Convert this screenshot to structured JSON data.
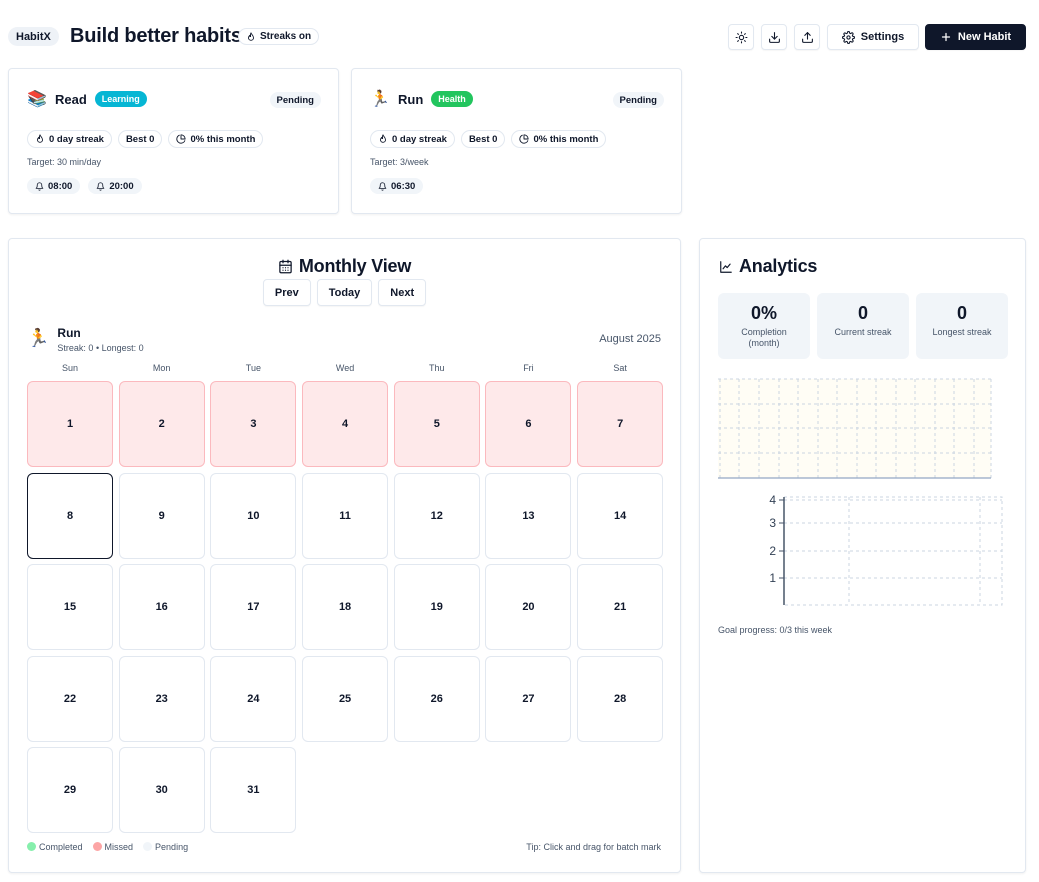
{
  "header": {
    "brand": "HabitX",
    "title": "Build better habits",
    "streaks_badge": "Streaks on",
    "icon_buttons": [
      "sun-icon",
      "download-icon",
      "upload-icon"
    ],
    "settings_label": "Settings",
    "new_habit_label": "New Habit"
  },
  "habits": [
    {
      "emoji": "📚",
      "name": "Read",
      "tag": "Learning",
      "tag_color": "#06b6d4",
      "status": "Pending",
      "streak": "0 day streak",
      "best": "Best 0",
      "month": "0% this month",
      "target": "Target: 30 min/day",
      "reminders": [
        "08:00",
        "20:00"
      ]
    },
    {
      "emoji": "🏃",
      "name": "Run",
      "tag": "Health",
      "tag_color": "#22c55e",
      "status": "Pending",
      "streak": "0 day streak",
      "best": "Best 0",
      "month": "0% this month",
      "target": "Target: 3/week",
      "reminders": [
        "06:30"
      ]
    }
  ],
  "monthly": {
    "title": "Monthly View",
    "nav": {
      "prev": "Prev",
      "today": "Today",
      "next": "Next"
    },
    "habit_emoji": "🏃",
    "habit_name": "Run",
    "habit_sub": "Streak: 0 • Longest: 0",
    "month_label": "August 2025",
    "weekdays": [
      "Sun",
      "Mon",
      "Tue",
      "Wed",
      "Thu",
      "Fri",
      "Sat"
    ],
    "days": [
      {
        "n": "1",
        "state": "missed"
      },
      {
        "n": "2",
        "state": "missed"
      },
      {
        "n": "3",
        "state": "missed"
      },
      {
        "n": "4",
        "state": "missed"
      },
      {
        "n": "5",
        "state": "missed"
      },
      {
        "n": "6",
        "state": "missed"
      },
      {
        "n": "7",
        "state": "missed"
      },
      {
        "n": "8",
        "state": "today"
      },
      {
        "n": "9",
        "state": "pending"
      },
      {
        "n": "10",
        "state": "pending"
      },
      {
        "n": "11",
        "state": "pending"
      },
      {
        "n": "12",
        "state": "pending"
      },
      {
        "n": "13",
        "state": "pending"
      },
      {
        "n": "14",
        "state": "pending"
      },
      {
        "n": "15",
        "state": "pending"
      },
      {
        "n": "16",
        "state": "pending"
      },
      {
        "n": "17",
        "state": "pending"
      },
      {
        "n": "18",
        "state": "pending"
      },
      {
        "n": "19",
        "state": "pending"
      },
      {
        "n": "20",
        "state": "pending"
      },
      {
        "n": "21",
        "state": "pending"
      },
      {
        "n": "22",
        "state": "pending"
      },
      {
        "n": "23",
        "state": "pending"
      },
      {
        "n": "24",
        "state": "pending"
      },
      {
        "n": "25",
        "state": "pending"
      },
      {
        "n": "26",
        "state": "pending"
      },
      {
        "n": "27",
        "state": "pending"
      },
      {
        "n": "28",
        "state": "pending"
      },
      {
        "n": "29",
        "state": "pending"
      },
      {
        "n": "30",
        "state": "pending"
      },
      {
        "n": "31",
        "state": "pending"
      }
    ],
    "legend": [
      {
        "label": "Completed",
        "color": "#86efac"
      },
      {
        "label": "Missed",
        "color": "#fca5a5"
      },
      {
        "label": "Pending",
        "color": "#f1f5f9"
      }
    ],
    "tip": "Tip: Click and drag for batch mark"
  },
  "analytics": {
    "title": "Analytics",
    "stats": [
      {
        "value": "0%",
        "label": "Completion (month)"
      },
      {
        "value": "0",
        "label": "Current streak"
      },
      {
        "value": "0",
        "label": "Longest streak"
      }
    ],
    "goal_progress": "Goal progress: 0/3 this week",
    "chart_data": {
      "type": "bar",
      "categories": [
        ""
      ],
      "values": [
        0
      ],
      "yticks": [
        "1",
        "2",
        "3",
        "4"
      ],
      "ylim": [
        0,
        4
      ],
      "grid": true
    }
  }
}
